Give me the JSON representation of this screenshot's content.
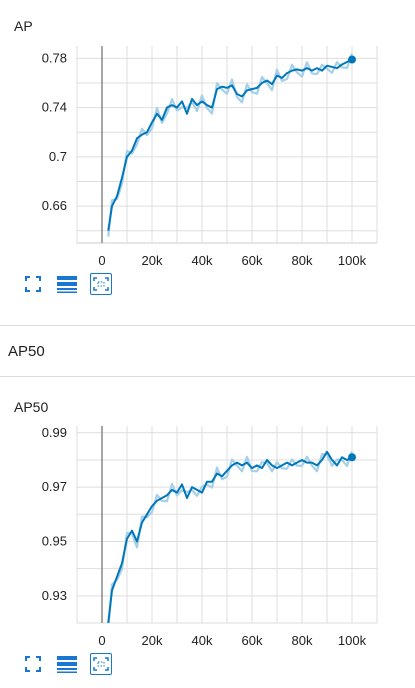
{
  "colors": {
    "line": "#0077bb",
    "band": "#a6cfe8",
    "grid": "#dddddd",
    "zero": "#888888",
    "icon": "#1976d2"
  },
  "section": {
    "title": "AP50"
  },
  "toolbar_icons": [
    "fullscreen-icon",
    "toggle-lines-icon",
    "fit-domain-icon"
  ],
  "chart_data": [
    {
      "type": "line",
      "title": "AP",
      "xlim": [
        -10000,
        110000
      ],
      "ylim": [
        0.63,
        0.79
      ],
      "xticks": [
        0,
        20000,
        40000,
        60000,
        80000,
        100000
      ],
      "xtick_labels": [
        "0",
        "20k",
        "40k",
        "60k",
        "80k",
        "100k"
      ],
      "yticks": [
        0.66,
        0.7,
        0.74,
        0.78
      ],
      "ytick_labels": [
        "0.66",
        "0.7",
        "0.74",
        "0.78"
      ],
      "series": [
        {
          "x": [
            2500,
            4000,
            6000,
            8000,
            10000,
            12000,
            14000,
            16000,
            18000,
            20000,
            22000,
            24000,
            26000,
            28000,
            30000,
            32000,
            34000,
            36000,
            38000,
            40000,
            42000,
            44000,
            46000,
            48000,
            50000,
            52000,
            54000,
            56000,
            58000,
            60000,
            62000,
            64000,
            66000,
            68000,
            70000,
            72000,
            74000,
            76000,
            78000,
            80000,
            82000,
            84000,
            86000,
            88000,
            90000,
            92000,
            94000,
            96000,
            98000,
            100000
          ],
          "y": [
            0.64,
            0.66,
            0.668,
            0.683,
            0.7,
            0.705,
            0.715,
            0.718,
            0.72,
            0.728,
            0.735,
            0.73,
            0.74,
            0.742,
            0.74,
            0.745,
            0.735,
            0.747,
            0.742,
            0.745,
            0.742,
            0.74,
            0.755,
            0.757,
            0.756,
            0.758,
            0.751,
            0.749,
            0.754,
            0.755,
            0.756,
            0.76,
            0.762,
            0.759,
            0.766,
            0.764,
            0.768,
            0.77,
            0.771,
            0.77,
            0.772,
            0.77,
            0.772,
            0.77,
            0.774,
            0.773,
            0.772,
            0.775,
            0.777,
            0.779
          ]
        }
      ]
    },
    {
      "type": "line",
      "title": "AP50",
      "xlim": [
        -10000,
        110000
      ],
      "ylim": [
        0.92,
        0.9925
      ],
      "xticks": [
        0,
        20000,
        40000,
        60000,
        80000,
        100000
      ],
      "xtick_labels": [
        "0",
        "20k",
        "40k",
        "60k",
        "80k",
        "100k"
      ],
      "yticks": [
        0.93,
        0.95,
        0.97,
        0.99
      ],
      "ytick_labels": [
        "0.93",
        "0.95",
        "0.97",
        "0.99"
      ],
      "series": [
        {
          "x": [
            2500,
            4000,
            6000,
            8000,
            10000,
            12000,
            14000,
            16000,
            18000,
            20000,
            22000,
            24000,
            26000,
            28000,
            30000,
            32000,
            34000,
            36000,
            38000,
            40000,
            42000,
            44000,
            46000,
            48000,
            50000,
            52000,
            54000,
            56000,
            58000,
            60000,
            62000,
            64000,
            66000,
            68000,
            70000,
            72000,
            74000,
            76000,
            78000,
            80000,
            82000,
            84000,
            86000,
            88000,
            90000,
            92000,
            94000,
            96000,
            98000,
            100000
          ],
          "y": [
            0.92,
            0.932,
            0.937,
            0.942,
            0.951,
            0.954,
            0.95,
            0.957,
            0.96,
            0.963,
            0.965,
            0.966,
            0.967,
            0.969,
            0.968,
            0.971,
            0.966,
            0.97,
            0.969,
            0.968,
            0.972,
            0.972,
            0.975,
            0.974,
            0.976,
            0.978,
            0.979,
            0.978,
            0.979,
            0.977,
            0.978,
            0.977,
            0.98,
            0.978,
            0.977,
            0.978,
            0.979,
            0.978,
            0.979,
            0.98,
            0.979,
            0.979,
            0.978,
            0.98,
            0.983,
            0.98,
            0.978,
            0.981,
            0.98,
            0.981
          ]
        }
      ]
    }
  ]
}
